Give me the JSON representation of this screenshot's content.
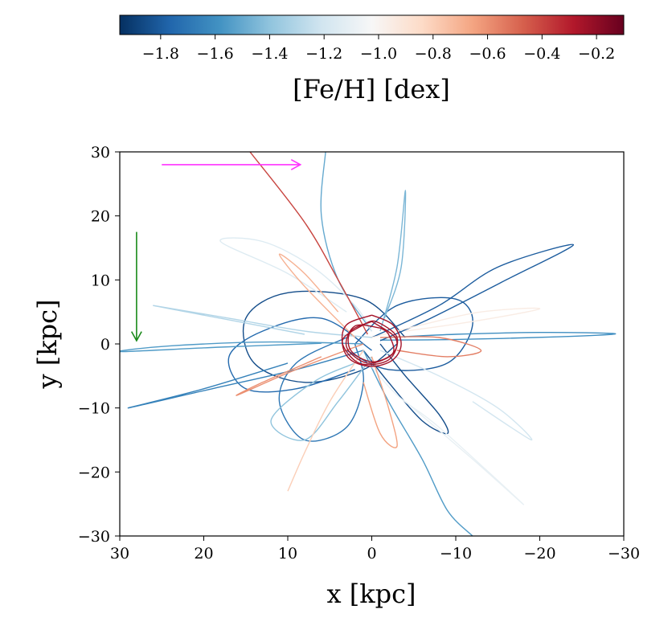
{
  "chart_data": {
    "type": "line",
    "title": "",
    "xlabel": "x [kpc]",
    "ylabel": "y [kpc]",
    "xlim": [
      30,
      -30
    ],
    "ylim": [
      -30,
      30
    ],
    "x_ticks": [
      30,
      20,
      10,
      0,
      -10,
      -20,
      -30
    ],
    "y_ticks": [
      30,
      20,
      10,
      0,
      -10,
      -20,
      -30
    ],
    "x_tick_labels": [
      "30",
      "20",
      "10",
      "0",
      "−10",
      "−20",
      "−30"
    ],
    "y_tick_labels": [
      "30",
      "20",
      "10",
      "0",
      "−10",
      "−20",
      "−30"
    ],
    "grid": false,
    "colorbar": {
      "label": "[Fe/H] [dex]",
      "cmap": "RdBu_r",
      "range": [
        -1.95,
        -0.1
      ],
      "ticks": [
        -1.8,
        -1.6,
        -1.4,
        -1.2,
        -1.0,
        -0.8,
        -0.6,
        -0.4,
        -0.2
      ],
      "tick_labels": [
        "−1.8",
        "−1.6",
        "−1.4",
        "−1.2",
        "−1.0",
        "−0.8",
        "−0.6",
        "−0.4",
        "−0.2"
      ],
      "orientation": "horizontal",
      "placement": "top"
    },
    "arrows": [
      {
        "color": "#ff33ff",
        "from": [
          25,
          28
        ],
        "to": [
          8.5,
          28
        ]
      },
      {
        "color": "#1a8a1a",
        "from": [
          28,
          17.5
        ],
        "to": [
          28,
          0.5
        ]
      }
    ],
    "series": [
      {
        "feh": -1.85,
        "values": [
          [
            -4,
            1
          ],
          [
            1,
            7
          ],
          [
            10,
            8
          ],
          [
            15,
            4
          ],
          [
            14,
            -3
          ],
          [
            8,
            -6
          ],
          [
            1,
            -4
          ],
          [
            -3,
            0
          ]
        ]
      },
      {
        "feh": -1.8,
        "values": [
          [
            2,
            0
          ],
          [
            -3,
            6
          ],
          [
            -10,
            7
          ],
          [
            -12,
            3
          ],
          [
            -9,
            -3
          ],
          [
            -2,
            -4
          ],
          [
            3,
            -1
          ]
        ]
      },
      {
        "feh": -1.75,
        "values": [
          [
            0,
            -1
          ],
          [
            6,
            4
          ],
          [
            13,
            2
          ],
          [
            17,
            -2
          ],
          [
            15,
            -7
          ],
          [
            9,
            -7
          ],
          [
            2,
            -4
          ]
        ]
      },
      {
        "feh": -1.85,
        "values": [
          [
            -1,
            0
          ],
          [
            -4,
            -5
          ],
          [
            -8,
            -11
          ],
          [
            -9,
            -14
          ],
          [
            -6,
            -12
          ],
          [
            -2,
            -6
          ],
          [
            1,
            -1
          ]
        ]
      },
      {
        "feh": -1.7,
        "values": [
          [
            3,
            1
          ],
          [
            9,
            -3
          ],
          [
            11,
            -9
          ],
          [
            8,
            -15
          ],
          [
            3,
            -13
          ],
          [
            1,
            -6
          ],
          [
            2,
            0
          ]
        ]
      },
      {
        "feh": -1.6,
        "values": [
          [
            -2,
            1
          ],
          [
            -10,
            1.5
          ],
          [
            -20,
            1.8
          ],
          [
            -29,
            1.6
          ],
          [
            -22,
            1.1
          ],
          [
            -10,
            0.7
          ],
          [
            -1,
            0.6
          ]
        ]
      },
      {
        "feh": -1.55,
        "values": [
          [
            1,
            0
          ],
          [
            12,
            0.3
          ],
          [
            24,
            -0.3
          ],
          [
            30,
            -1.2
          ],
          [
            18,
            -0.5
          ],
          [
            6,
            0.1
          ]
        ]
      },
      {
        "feh": -1.5,
        "values": [
          [
            0,
            2
          ],
          [
            4,
            10
          ],
          [
            6,
            20
          ],
          [
            5.5,
            30
          ]
        ]
      },
      {
        "feh": -1.45,
        "values": [
          [
            -1,
            2
          ],
          [
            -3,
            12
          ],
          [
            -4,
            24
          ],
          [
            -3.5,
            12
          ],
          [
            -1.5,
            4
          ]
        ]
      },
      {
        "feh": -1.8,
        "values": [
          [
            0,
            1
          ],
          [
            -8,
            6
          ],
          [
            -15,
            12
          ],
          [
            -24,
            15.5
          ],
          [
            -16,
            10
          ],
          [
            -7,
            4
          ],
          [
            -1,
            0.5
          ]
        ]
      },
      {
        "feh": -1.65,
        "values": [
          [
            1,
            -1
          ],
          [
            9,
            -4
          ],
          [
            19,
            -7
          ],
          [
            29,
            -10
          ],
          [
            20,
            -7
          ],
          [
            10,
            -3
          ]
        ]
      },
      {
        "feh": -1.55,
        "values": [
          [
            1,
            -1
          ],
          [
            -2,
            -9
          ],
          [
            -6,
            -18
          ],
          [
            -9,
            -26
          ],
          [
            -12,
            -30
          ]
        ]
      },
      {
        "feh": -1.4,
        "values": [
          [
            0,
            -2
          ],
          [
            4,
            -9
          ],
          [
            8,
            -15
          ],
          [
            12,
            -12
          ],
          [
            7,
            -6
          ],
          [
            2,
            -3
          ]
        ]
      },
      {
        "feh": -1.3,
        "values": [
          [
            0,
            1
          ],
          [
            8,
            2
          ],
          [
            17,
            4
          ],
          [
            26,
            6
          ],
          [
            18,
            4
          ],
          [
            8,
            1.5
          ]
        ]
      },
      {
        "feh": -1.2,
        "values": [
          [
            -1,
            -1
          ],
          [
            -8,
            -5
          ],
          [
            -15,
            -10
          ],
          [
            -19,
            -15
          ],
          [
            -12,
            -9
          ]
        ]
      },
      {
        "feh": -1.15,
        "values": [
          [
            0,
            2
          ],
          [
            2,
            6
          ],
          [
            7,
            12
          ],
          [
            13,
            16
          ],
          [
            18,
            16
          ],
          [
            10,
            11
          ],
          [
            3,
            5
          ]
        ]
      },
      {
        "feh": -1.1,
        "values": [
          [
            1,
            -2
          ],
          [
            -3,
            -8
          ],
          [
            -8,
            -13
          ],
          [
            -18,
            -25
          ],
          [
            -12,
            -18
          ],
          [
            -4,
            -9
          ]
        ]
      },
      {
        "feh": -0.95,
        "values": [
          [
            0,
            1
          ],
          [
            -6,
            3
          ],
          [
            -13,
            5
          ],
          [
            -20,
            5.5
          ],
          [
            -12,
            3.5
          ],
          [
            -4,
            2
          ]
        ]
      },
      {
        "feh": -0.8,
        "values": [
          [
            1,
            -1
          ],
          [
            5,
            -9
          ],
          [
            8,
            -17
          ],
          [
            10,
            -23
          ]
        ]
      },
      {
        "feh": -0.7,
        "values": [
          [
            2,
            1
          ],
          [
            8,
            9
          ],
          [
            11,
            14
          ],
          [
            8,
            11
          ],
          [
            4,
            5
          ]
        ]
      },
      {
        "feh": -0.65,
        "values": [
          [
            0,
            -2
          ],
          [
            -2,
            -10
          ],
          [
            -3,
            -16
          ],
          [
            -1,
            -14
          ],
          [
            1,
            -6
          ]
        ]
      },
      {
        "feh": -0.6,
        "values": [
          [
            1,
            0
          ],
          [
            9,
            -4
          ],
          [
            16,
            -8
          ],
          [
            13,
            -6
          ],
          [
            6,
            -2
          ]
        ]
      },
      {
        "feh": -0.55,
        "values": [
          [
            -1,
            1
          ],
          [
            -8,
            1
          ],
          [
            -13,
            -1
          ],
          [
            -9,
            -2
          ],
          [
            -3,
            -1
          ]
        ]
      },
      {
        "feh": -0.4,
        "values": [
          [
            14.5,
            30
          ],
          [
            8,
            19
          ],
          [
            4,
            10
          ],
          [
            1.5,
            4
          ],
          [
            0.5,
            1.5
          ]
        ]
      },
      {
        "feh": -0.25,
        "values": [
          [
            0,
            4.5
          ],
          [
            3,
            3
          ],
          [
            3.5,
            0
          ],
          [
            2.5,
            -2.5
          ],
          [
            0,
            -3.5
          ],
          [
            -2.5,
            -2.5
          ],
          [
            -3.5,
            0
          ],
          [
            -2.5,
            3
          ],
          [
            0,
            4.5
          ]
        ]
      },
      {
        "feh": -0.25,
        "values": [
          [
            0,
            3.5
          ],
          [
            2.5,
            2
          ],
          [
            2.5,
            -1
          ],
          [
            0,
            -2.8
          ],
          [
            -2.5,
            -1.5
          ],
          [
            -2.8,
            1
          ],
          [
            0,
            3.5
          ]
        ]
      },
      {
        "feh": -0.25,
        "values": [
          [
            1,
            3
          ],
          [
            3.5,
            0.5
          ],
          [
            1.5,
            -3
          ],
          [
            -2,
            -2.5
          ],
          [
            -3,
            1
          ],
          [
            -0.5,
            3.5
          ],
          [
            1,
            3
          ]
        ]
      },
      {
        "feh": -0.25,
        "values": [
          [
            -1,
            2.5
          ],
          [
            2,
            2.8
          ],
          [
            3,
            -0.5
          ],
          [
            0.5,
            -3
          ],
          [
            -2.5,
            -1.5
          ],
          [
            -2,
            1.5
          ],
          [
            -1,
            2.5
          ]
        ]
      }
    ]
  }
}
